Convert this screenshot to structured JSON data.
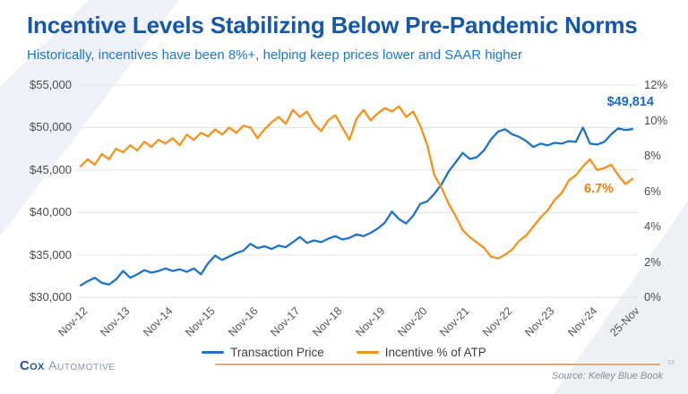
{
  "slide": {
    "title": "Incentive Levels Stabilizing Below Pre-Pandemic Norms",
    "subtitle": "Historically, incentives have been 8%+, helping keep prices lower and SAAR higher",
    "source": "Source: Kelley Blue Book",
    "page_number": "13",
    "logo": {
      "primary": "Cox",
      "secondary": "Automotive"
    }
  },
  "colors": {
    "title_blue": "#1857a8",
    "subtitle_blue": "#1a78d2",
    "transaction_price_line": "#1e73c8",
    "incentive_line": "#f5921e",
    "price_label": "#1b6ac6",
    "pct_label": "#e8830e",
    "gridline": "#e2e2e2",
    "footer_rule_orange": "#ecaa5a"
  },
  "chart_data": {
    "type": "line",
    "title": "",
    "x_description": "Monthly series Nov-2012 to Nov-2025, values sampled every 2 months (79 points)",
    "x_tick_labels": [
      "Nov-12",
      "Nov-13",
      "Nov-14",
      "Nov-15",
      "Nov-16",
      "Nov-17",
      "Nov-18",
      "Nov-19",
      "Nov-20",
      "Nov-21",
      "Nov-22",
      "Nov-23",
      "Nov-24",
      "25-Nov"
    ],
    "left_axis": {
      "min": 30000,
      "max": 55000,
      "tick_labels": [
        "$55,000",
        "$50,000",
        "$45,000",
        "$40,000",
        "$35,000",
        "$30,000"
      ]
    },
    "right_axis": {
      "min": 0,
      "max": 12,
      "tick_labels": [
        "12%",
        "10%",
        "8%",
        "6%",
        "4%",
        "2%",
        "0%"
      ]
    },
    "grid": "horizontal gridlines at left-axis ticks",
    "legend_position": "bottom-center",
    "series": [
      {
        "name": "Transaction Price",
        "axis": "left",
        "color": "#1e73c8",
        "end_label": "$49,814",
        "values": [
          31400,
          31900,
          32300,
          31700,
          31500,
          32100,
          33100,
          32300,
          32700,
          33200,
          32900,
          33100,
          33400,
          33100,
          33300,
          33000,
          33400,
          32700,
          34000,
          34900,
          34400,
          34800,
          35200,
          35500,
          36300,
          35800,
          36000,
          35700,
          36100,
          35900,
          36500,
          37100,
          36400,
          36700,
          36500,
          36900,
          37200,
          36800,
          37000,
          37400,
          37200,
          37600,
          38100,
          38800,
          40100,
          39200,
          38700,
          39600,
          41000,
          41300,
          42200,
          43300,
          44800,
          45900,
          47000,
          46300,
          46500,
          47300,
          48600,
          49500,
          49800,
          49200,
          48900,
          48400,
          47700,
          48100,
          47900,
          48200,
          48100,
          48400,
          48300,
          50000,
          48100,
          48000,
          48300,
          49200,
          49900,
          49700,
          49814
        ]
      },
      {
        "name": "Incentive % of ATP",
        "axis": "right",
        "color": "#f5921e",
        "end_label": "6.7%",
        "values": [
          7.4,
          7.8,
          7.5,
          8.1,
          7.8,
          8.4,
          8.2,
          8.6,
          8.3,
          8.8,
          8.5,
          8.9,
          8.7,
          9.0,
          8.6,
          9.2,
          8.9,
          9.3,
          9.1,
          9.5,
          9.2,
          9.6,
          9.3,
          9.7,
          9.6,
          9.0,
          9.5,
          9.9,
          10.2,
          9.8,
          10.6,
          10.2,
          10.5,
          9.8,
          9.4,
          10.0,
          10.3,
          9.6,
          8.9,
          10.1,
          10.6,
          10.0,
          10.4,
          10.7,
          10.5,
          10.8,
          10.2,
          10.5,
          9.7,
          8.6,
          6.9,
          6.2,
          5.3,
          4.6,
          3.8,
          3.4,
          3.1,
          2.8,
          2.3,
          2.2,
          2.4,
          2.7,
          3.2,
          3.5,
          4.0,
          4.5,
          4.9,
          5.5,
          5.9,
          6.6,
          6.9,
          7.4,
          7.8,
          7.2,
          7.3,
          7.5,
          6.9,
          6.4,
          6.7
        ]
      }
    ]
  }
}
